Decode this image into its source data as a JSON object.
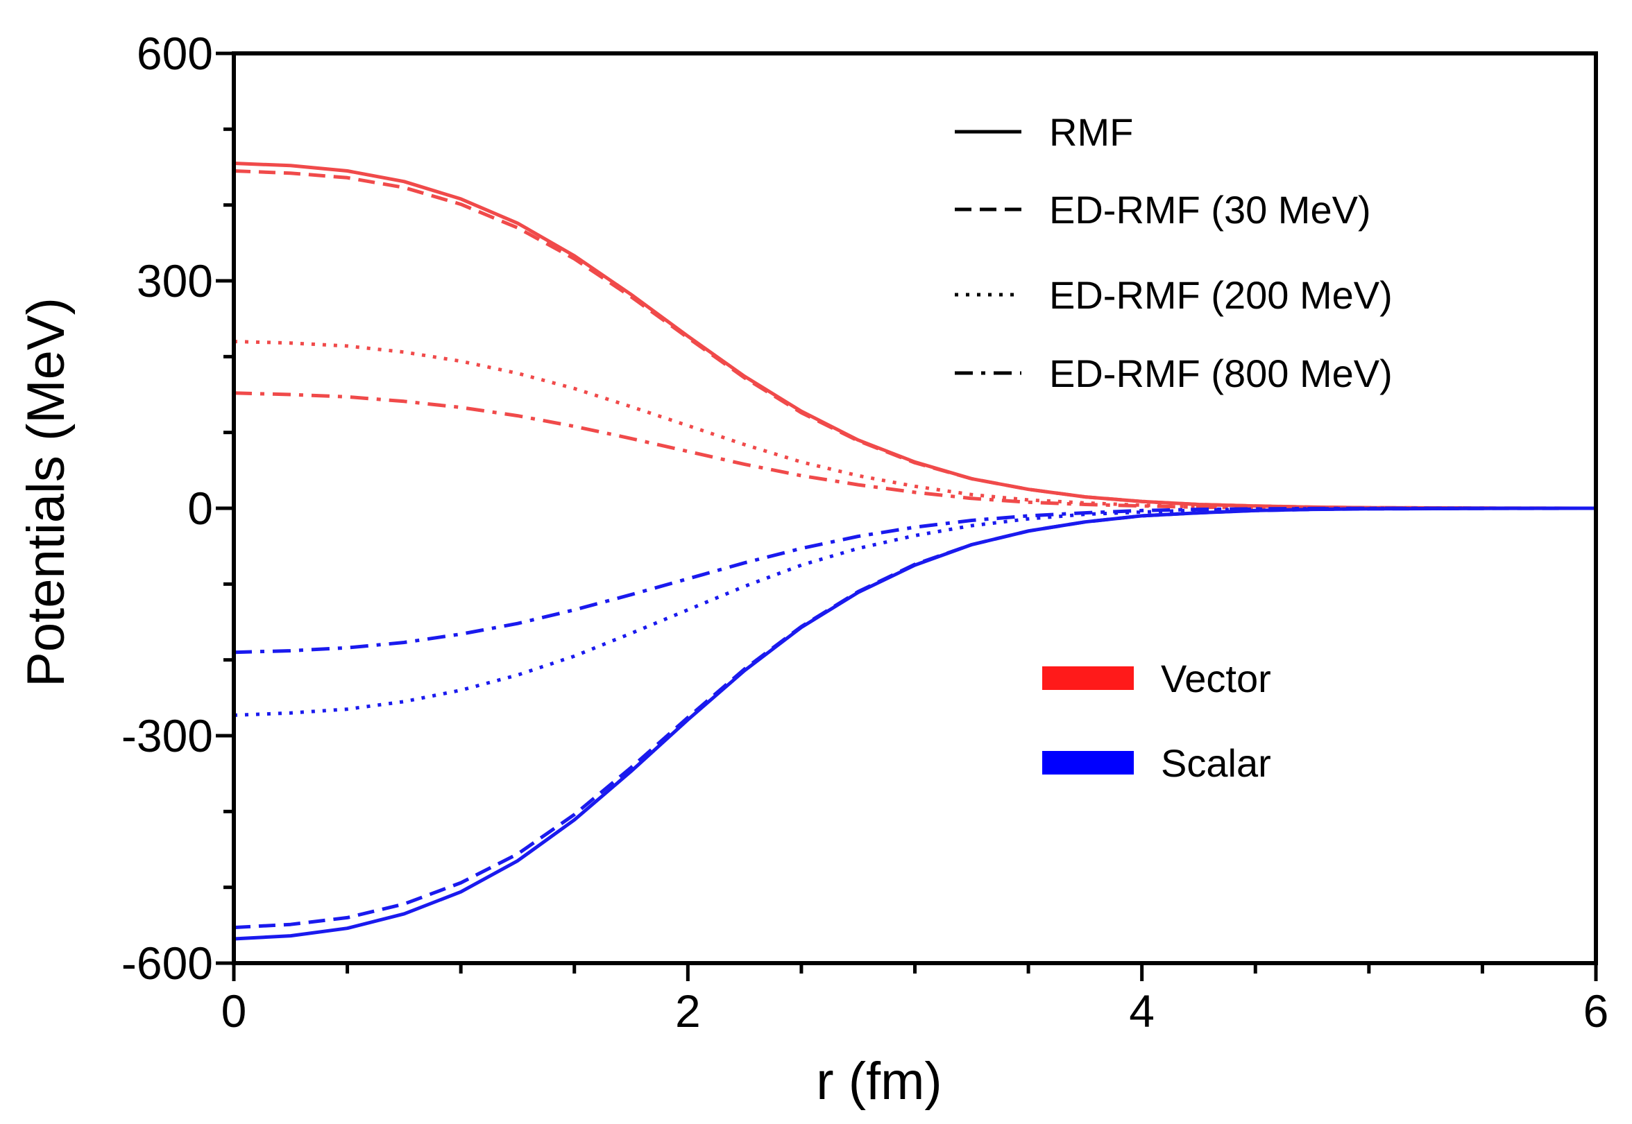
{
  "chart_data": {
    "type": "line",
    "title": "",
    "xlabel": "r (fm)",
    "ylabel": "Potentials (MeV)",
    "xlim": [
      0,
      6
    ],
    "ylim": [
      -600,
      600
    ],
    "x_ticks": [
      0,
      2,
      4,
      6
    ],
    "x_tick_labels": [
      "0",
      "2",
      "4",
      "6"
    ],
    "y_ticks": [
      -600,
      -300,
      0,
      300,
      600
    ],
    "y_tick_labels": [
      "-600",
      "-300",
      "0",
      "300",
      "600"
    ],
    "x_minor_step": 0.5,
    "y_minor_step": 100,
    "grid": false,
    "colors": {
      "Vector": "#f04a4a",
      "Scalar": "#1a1aee",
      "axis": "#000000"
    },
    "legend_styles": [
      {
        "label": "RMF",
        "dash": "solid"
      },
      {
        "label": "ED-RMF (30 MeV)",
        "dash": "dash"
      },
      {
        "label": "ED-RMF (200 MeV)",
        "dash": "dot"
      },
      {
        "label": "ED-RMF (800 MeV)",
        "dash": "dashdot"
      }
    ],
    "legend_colors": [
      {
        "label": "Vector",
        "color": "#ff1a1a"
      },
      {
        "label": "Scalar",
        "color": "#0000ff"
      }
    ],
    "x": [
      0,
      0.25,
      0.5,
      0.75,
      1.0,
      1.25,
      1.5,
      1.75,
      2.0,
      2.25,
      2.5,
      2.75,
      3.0,
      3.25,
      3.5,
      3.75,
      4.0,
      4.25,
      4.5,
      4.75,
      5.0,
      5.5,
      6.0
    ],
    "series": [
      {
        "name": "Vector RMF",
        "group": "Vector",
        "dash": "solid",
        "values": [
          455,
          452,
          445,
          431,
          408,
          376,
          333,
          282,
          227,
          174,
          128,
          90,
          61,
          39,
          25,
          15,
          9,
          5,
          3,
          1.5,
          0.7,
          0.2,
          0
        ]
      },
      {
        "name": "Vector ED-RMF (30 MeV)",
        "group": "Vector",
        "dash": "dash",
        "values": [
          445,
          442,
          436,
          423,
          401,
          370,
          329,
          279,
          225,
          172,
          126,
          89,
          60,
          39,
          25,
          15,
          9,
          5,
          3,
          1.5,
          0.7,
          0.2,
          0
        ]
      },
      {
        "name": "Vector ED-RMF (200 MeV)",
        "group": "Vector",
        "dash": "dot",
        "values": [
          220,
          218,
          214,
          206,
          194,
          178,
          158,
          134,
          109,
          84,
          61,
          43,
          29,
          18,
          11,
          7,
          4,
          2,
          1,
          0.5,
          0.2,
          0,
          0
        ]
      },
      {
        "name": "Vector ED-RMF (800 MeV)",
        "group": "Vector",
        "dash": "dashdot",
        "values": [
          152,
          150,
          147,
          141,
          133,
          122,
          108,
          92,
          75,
          58,
          43,
          31,
          21,
          13,
          8,
          5,
          3,
          1.5,
          0.8,
          0.4,
          0.2,
          0,
          0
        ]
      },
      {
        "name": "Scalar RMF",
        "group": "Scalar",
        "dash": "solid",
        "values": [
          -568,
          -564,
          -554,
          -535,
          -506,
          -465,
          -411,
          -347,
          -279,
          -214,
          -157,
          -111,
          -75,
          -48,
          -30,
          -18,
          -10,
          -6,
          -3,
          -1.5,
          -0.7,
          -0.2,
          0
        ]
      },
      {
        "name": "Scalar ED-RMF (30 MeV)",
        "group": "Scalar",
        "dash": "dash",
        "values": [
          -553,
          -549,
          -540,
          -522,
          -494,
          -456,
          -404,
          -342,
          -276,
          -212,
          -156,
          -110,
          -74,
          -48,
          -30,
          -18,
          -10,
          -6,
          -3,
          -1.5,
          -0.7,
          -0.2,
          0
        ]
      },
      {
        "name": "Scalar ED-RMF (200 MeV)",
        "group": "Scalar",
        "dash": "dot",
        "values": [
          -273,
          -270,
          -265,
          -255,
          -240,
          -220,
          -195,
          -165,
          -134,
          -103,
          -75,
          -53,
          -36,
          -23,
          -14,
          -8,
          -5,
          -2.5,
          -1.2,
          -0.6,
          -0.3,
          0,
          0
        ]
      },
      {
        "name": "Scalar ED-RMF (800 MeV)",
        "group": "Scalar",
        "dash": "dashdot",
        "values": [
          -190,
          -188,
          -184,
          -177,
          -166,
          -152,
          -134,
          -114,
          -93,
          -72,
          -53,
          -37,
          -25,
          -16,
          -10,
          -6,
          -3,
          -1.5,
          -0.8,
          -0.4,
          -0.2,
          0,
          0
        ]
      }
    ]
  }
}
